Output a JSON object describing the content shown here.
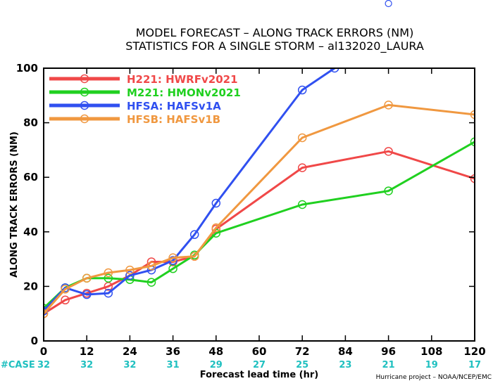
{
  "chart_data": {
    "type": "line",
    "title": "MODEL FORECAST – ALONG TRACK ERRORS (NM)",
    "subtitle": "STATISTICS FOR A SINGLE STORM – al132020_LAURA",
    "xlabel": "Forecast lead time (hr)",
    "ylabel": "ALONG TRACK ERRORS (NM)",
    "xlim": [
      0,
      120
    ],
    "ylim": [
      0,
      100
    ],
    "x_ticks": [
      0,
      12,
      24,
      36,
      48,
      60,
      72,
      84,
      96,
      108,
      120
    ],
    "y_ticks": [
      0,
      20,
      40,
      60,
      80,
      100
    ],
    "case_label": "#CASE",
    "case_counts": [
      "32",
      "32",
      "32",
      "31",
      "29",
      "27",
      "25",
      "23",
      "21",
      "19",
      "17"
    ],
    "credit": "Hurricane project – NOAA/NCEP/EMC",
    "grid": false,
    "legend_position": "top-left",
    "series": [
      {
        "name": "H221: HWRFv2021",
        "color": "#f04848",
        "x": [
          0,
          6,
          12,
          18,
          24,
          30,
          36,
          42,
          48,
          72,
          96,
          120
        ],
        "y": [
          10,
          15,
          17.5,
          20,
          24,
          29,
          29,
          31,
          41,
          63.5,
          69.5,
          59.5
        ]
      },
      {
        "name": "M221: HMONv2021",
        "color": "#20d020",
        "x": [
          0,
          6,
          12,
          18,
          24,
          30,
          36,
          42,
          48,
          72,
          96,
          120
        ],
        "y": [
          12,
          19.5,
          23,
          23,
          22.5,
          21.5,
          26.5,
          31.5,
          39.5,
          50,
          55,
          73
        ]
      },
      {
        "name": "HFSA: HAFSv1A",
        "color": "#3050f0",
        "x": [
          0,
          6,
          12,
          18,
          24,
          30,
          36,
          42,
          48,
          72,
          81,
          96
        ],
        "y": [
          11,
          19.5,
          17,
          17.5,
          24,
          26,
          29.5,
          39,
          50.5,
          92,
          100,
          125
        ]
      },
      {
        "name": "HFSB: HAFSv1B",
        "color": "#f09840",
        "x": [
          0,
          6,
          12,
          18,
          24,
          30,
          36,
          42,
          48,
          72,
          96,
          120
        ],
        "y": [
          10,
          19,
          23,
          25,
          26,
          27.5,
          30.5,
          31,
          41.5,
          74.5,
          86.5,
          83
        ]
      }
    ]
  }
}
